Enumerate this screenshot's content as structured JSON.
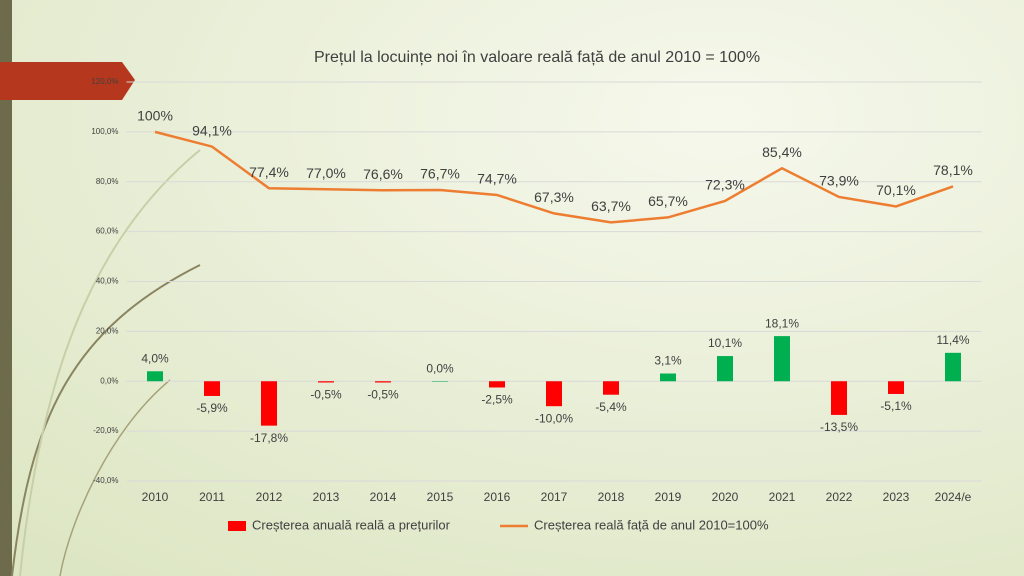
{
  "chart_data": {
    "type": "bar",
    "title": "Prețul la locuințe noi în valoare reală față de anul 2010 = 100%",
    "categories": [
      "2010",
      "2011",
      "2012",
      "2013",
      "2014",
      "2015",
      "2016",
      "2017",
      "2018",
      "2019",
      "2020",
      "2021",
      "2022",
      "2023",
      "2024/e"
    ],
    "series": [
      {
        "name": "Creșterea anuală reală a prețurilor",
        "type": "bar",
        "color": "#ff0000",
        "colors": [
          "#00b050",
          "#ff0000",
          "#ff0000",
          "#ff0000",
          "#ff0000",
          "#00b050",
          "#ff0000",
          "#ff0000",
          "#ff0000",
          "#00b050",
          "#00b050",
          "#00b050",
          "#ff0000",
          "#ff0000",
          "#00b050"
        ],
        "values": [
          4.0,
          -5.9,
          -17.8,
          -0.5,
          -0.5,
          0.0,
          -2.5,
          -10.0,
          -5.4,
          3.1,
          10.1,
          18.1,
          -13.5,
          -5.1,
          11.4
        ],
        "value_labels": [
          "4,0%",
          "-5,9%",
          "-17,8%",
          "-0,5%",
          "-0,5%",
          "0,0%",
          "-2,5%",
          "-10,0%",
          "-5,4%",
          "3,1%",
          "10,1%",
          "18,1%",
          "-13,5%",
          "-5,1%",
          "11,4%"
        ]
      },
      {
        "name": "Creșterea reală față de anul 2010=100%",
        "type": "line",
        "color": "#ed7d31",
        "values": [
          100,
          94.1,
          77.4,
          77.0,
          76.6,
          76.7,
          74.7,
          67.3,
          63.7,
          65.7,
          72.3,
          85.4,
          73.9,
          70.1,
          78.1
        ],
        "value_labels": [
          "100%",
          "94,1%",
          "77,4%",
          "77,0%",
          "76,6%",
          "76,7%",
          "74,7%",
          "67,3%",
          "63,7%",
          "65,7%",
          "72,3%",
          "85,4%",
          "73,9%",
          "70,1%",
          "78,1%"
        ]
      }
    ],
    "ylim": [
      -40,
      120
    ],
    "yticks": [
      {
        "value": -40,
        "label": "-40,0%"
      },
      {
        "value": -20,
        "label": "-20,0%"
      },
      {
        "value": 0,
        "label": "0,0%"
      },
      {
        "value": 20,
        "label": "20,0%"
      },
      {
        "value": 40,
        "label": "40,0%"
      },
      {
        "value": 60,
        "label": "60,0%"
      },
      {
        "value": 80,
        "label": "80,0%"
      },
      {
        "value": 100,
        "label": "100,0%"
      },
      {
        "value": 120,
        "label": "120,0%"
      }
    ],
    "grid": true,
    "legend": "bottom"
  }
}
